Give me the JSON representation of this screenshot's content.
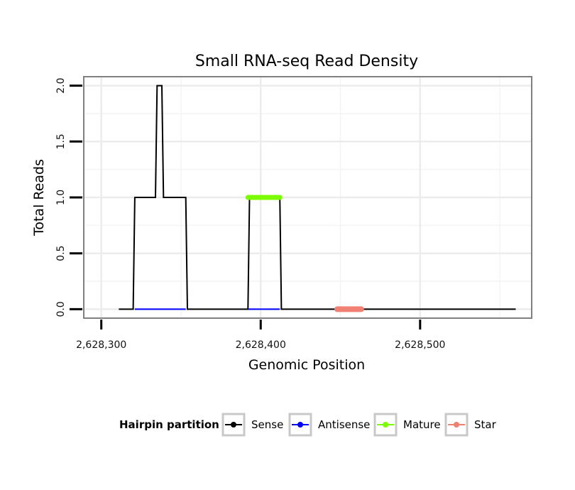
{
  "chart_data": {
    "type": "line",
    "title": "Small RNA-seq Read Density",
    "xlabel": "Genomic Position",
    "ylabel": "Total Reads",
    "xlim": [
      2628289,
      2628570
    ],
    "ylim": [
      -0.08,
      2.08
    ],
    "x_ticks": [
      {
        "value": 2628300,
        "label": "2,628,300"
      },
      {
        "value": 2628400,
        "label": "2,628,400"
      },
      {
        "value": 2628500,
        "label": "2,628,500"
      }
    ],
    "y_ticks": [
      {
        "value": 0.0,
        "label": "0.0"
      },
      {
        "value": 0.5,
        "label": "0.5"
      },
      {
        "value": 1.0,
        "label": "1.0"
      },
      {
        "value": 1.5,
        "label": "1.5"
      },
      {
        "value": 2.0,
        "label": "2.0"
      }
    ],
    "grid": true,
    "legend_position": "bottom",
    "legend_title": "Hairpin partition",
    "series": [
      {
        "name": "Sense",
        "color": "#000000",
        "x": [
          2628311,
          2628320,
          2628321,
          2628334,
          2628335,
          2628338,
          2628339,
          2628353,
          2628354,
          2628392,
          2628393,
          2628412,
          2628413,
          2628560
        ],
        "y": [
          0,
          0,
          1,
          1,
          2,
          2,
          1,
          1,
          0,
          0,
          1,
          1,
          0,
          0
        ]
      },
      {
        "name": "Antisense",
        "color": "#0000ff",
        "x": [
          2628321,
          2628353,
          2628392,
          2628412
        ],
        "y": [
          0,
          0,
          0,
          0
        ],
        "segments": [
          [
            0,
            1
          ],
          [
            2,
            3
          ]
        ]
      },
      {
        "name": "Mature",
        "color": "#7cfc00",
        "x": [
          2628392,
          2628412
        ],
        "y": [
          1,
          1
        ]
      },
      {
        "name": "Star",
        "color": "#f08072",
        "x": [
          2628448,
          2628463
        ],
        "y": [
          0,
          0
        ]
      }
    ]
  }
}
